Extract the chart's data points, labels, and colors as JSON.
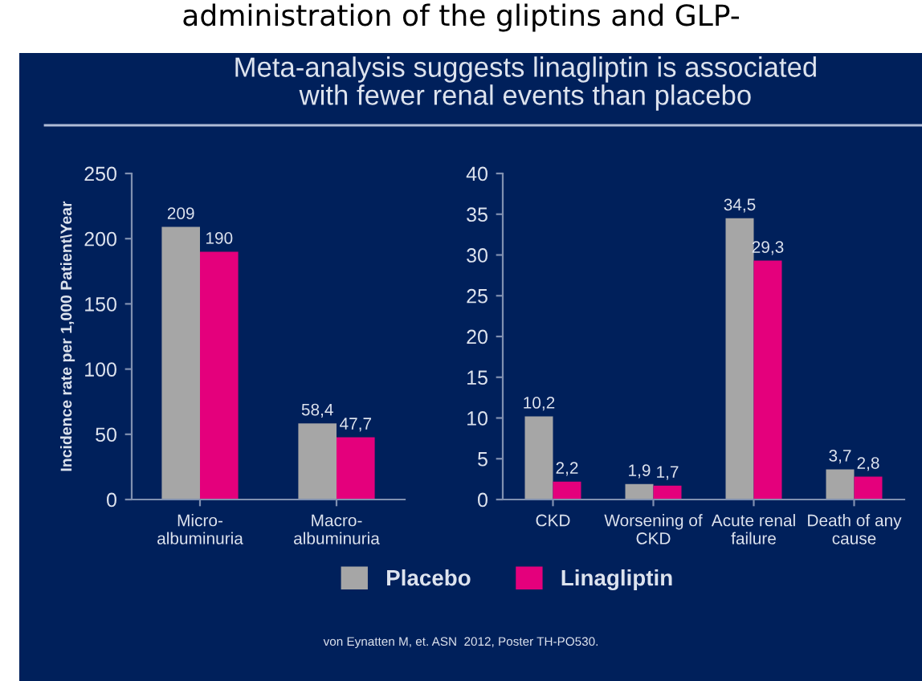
{
  "chart_data": [
    {
      "type": "bar",
      "title": "Meta-analysis suggests linagliptin is associated\nwith fewer renal events than placebo",
      "ylabel": "Incidence rate per 1,000 Patient\\Year",
      "categories": [
        "Micro-\nalbuminuria",
        "Macro-\nalbuminuria"
      ],
      "series": [
        {
          "name": "Placebo",
          "color": "#a6a6a6",
          "values": [
            209,
            58.4
          ],
          "value_labels": [
            "209",
            "58,4"
          ]
        },
        {
          "name": "Linagliptin",
          "color": "#e4007c",
          "values": [
            190,
            47.7
          ],
          "value_labels": [
            "190",
            "47,7"
          ]
        }
      ],
      "ylim": [
        0,
        250
      ],
      "yticks": [
        0,
        50,
        100,
        150,
        200,
        250
      ],
      "grid": false,
      "legend": "bottom",
      "annotations": [
        "administration of the gliptins and GLP-",
        "von Eynatten M, et. ASN  2012, Poster TH-PO530."
      ]
    },
    {
      "type": "bar",
      "categories": [
        "CKD",
        "Worsening of\nCKD",
        "Acute renal\nfailure",
        "Death of any\ncause"
      ],
      "series": [
        {
          "color": "#a6a6a6",
          "values": [
            10.2,
            1.9,
            34.5,
            3.7
          ],
          "value_labels": [
            "10,2",
            "1,9",
            "34,5",
            "3,7"
          ]
        },
        {
          "color": "#e4007c",
          "values": [
            2.2,
            1.7,
            29.3,
            2.8
          ],
          "value_labels": [
            "2,2",
            "1,7",
            "29,3",
            "2,8"
          ]
        }
      ],
      "ylim": [
        0,
        40
      ],
      "yticks": [
        0,
        5,
        10,
        15,
        20,
        25,
        30,
        35,
        40
      ],
      "grid": false
    }
  ]
}
